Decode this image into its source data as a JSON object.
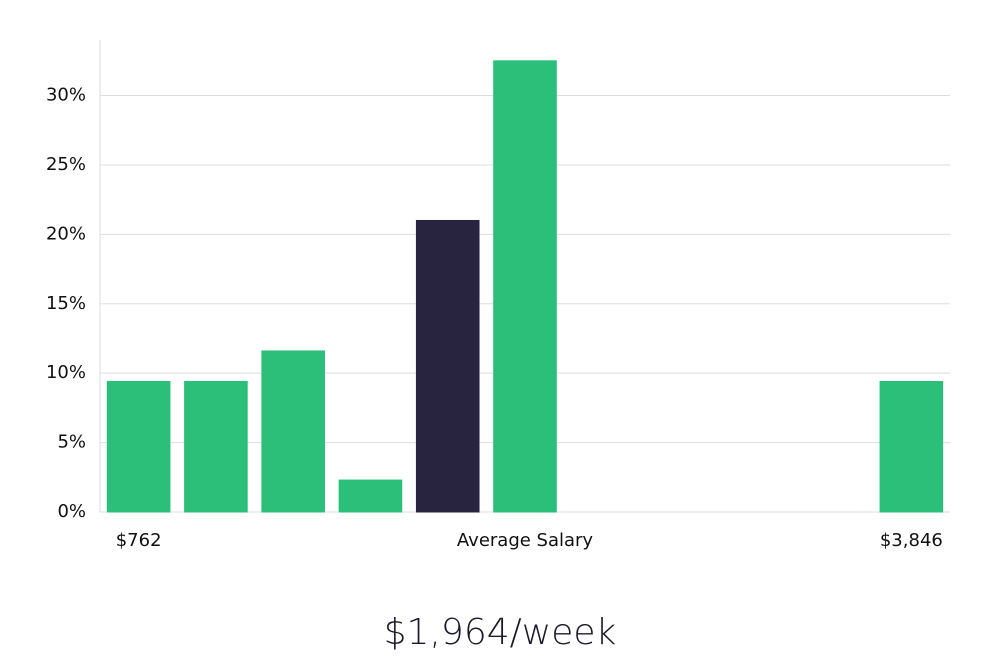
{
  "chart_data": {
    "type": "bar",
    "title": "$1,964/week",
    "categories": [
      "$762",
      null,
      null,
      null,
      null,
      "Average Salary",
      null,
      null,
      null,
      null,
      "$3,846"
    ],
    "values": [
      9.4,
      9.4,
      11.6,
      2.3,
      21.0,
      32.5,
      0,
      0,
      0,
      0,
      9.4
    ],
    "colors": [
      "#2bbf79",
      "#2bbf79",
      "#2bbf79",
      "#2bbf79",
      "#28243f",
      "#2bbf79",
      "#2bbf79",
      "#2bbf79",
      "#2bbf79",
      "#2bbf79",
      "#2bbf79"
    ],
    "ylim": [
      0,
      34
    ],
    "yticks": [
      {
        "value": 0,
        "label": "0%"
      },
      {
        "value": 5,
        "label": "5%"
      },
      {
        "value": 10,
        "label": "10%"
      },
      {
        "value": 15,
        "label": "15%"
      },
      {
        "value": 20,
        "label": "20%"
      },
      {
        "value": 25,
        "label": "25%"
      },
      {
        "value": 30,
        "label": "30%"
      }
    ],
    "grid": true
  }
}
